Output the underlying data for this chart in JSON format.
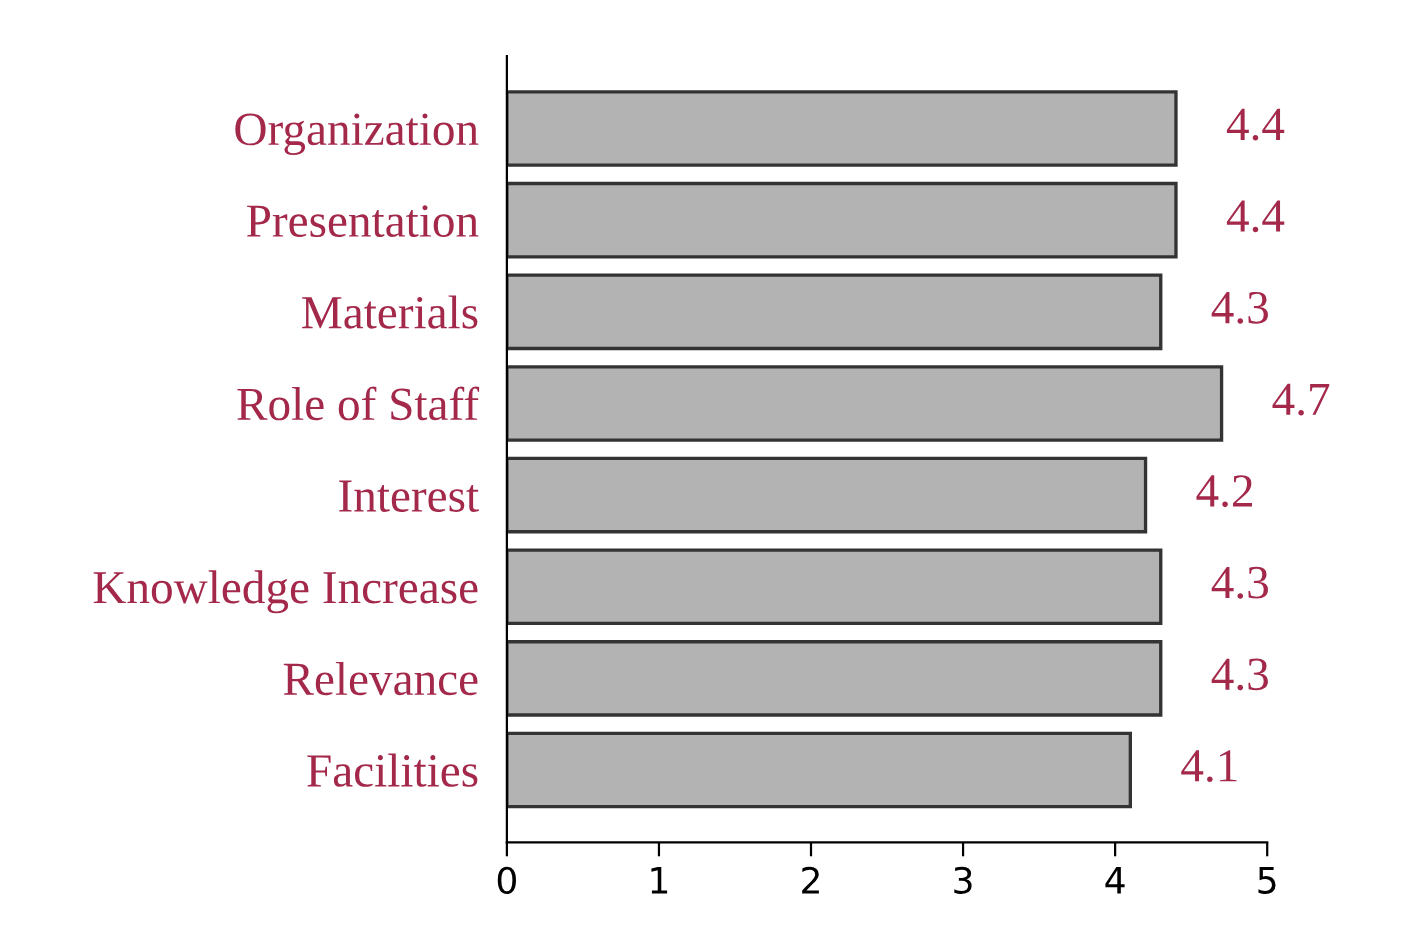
{
  "chart_data": {
    "type": "bar",
    "orientation": "horizontal",
    "categories": [
      "Organization",
      "Presentation",
      "Materials",
      "Role of Staff",
      "Interest",
      "Knowledge Increase",
      "Relevance",
      "Facilities"
    ],
    "values": [
      4.4,
      4.4,
      4.3,
      4.7,
      4.2,
      4.3,
      4.3,
      4.1
    ],
    "color": "#b3b3b3",
    "xlim": [
      0,
      5
    ],
    "xticks": [
      0,
      1,
      2,
      3,
      4,
      5
    ],
    "data_labels": true,
    "grid": false,
    "legend": false
  }
}
